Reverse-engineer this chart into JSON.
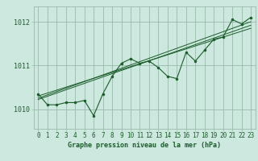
{
  "title": "",
  "xlabel": "Graphe pression niveau de la mer (hPa)",
  "bg_color": "#cce8df",
  "grid_color": "#99bbaa",
  "line_color": "#1a5c28",
  "xlim_min": -0.5,
  "xlim_max": 23.5,
  "ylim_min": 1009.55,
  "ylim_max": 1012.35,
  "yticks": [
    1010,
    1011,
    1012
  ],
  "xticks": [
    0,
    1,
    2,
    3,
    4,
    5,
    6,
    7,
    8,
    9,
    10,
    11,
    12,
    13,
    14,
    15,
    16,
    17,
    18,
    19,
    20,
    21,
    22,
    23
  ],
  "main_x": [
    0,
    1,
    2,
    3,
    4,
    5,
    6,
    7,
    8,
    9,
    10,
    11,
    12,
    13,
    14,
    15,
    16,
    17,
    18,
    19,
    20,
    21,
    22,
    23
  ],
  "main_y": [
    1010.35,
    1010.1,
    1010.1,
    1010.15,
    1010.15,
    1010.2,
    1009.85,
    1010.35,
    1010.75,
    1011.05,
    1011.15,
    1011.05,
    1011.1,
    1010.95,
    1010.75,
    1010.7,
    1011.3,
    1011.1,
    1011.35,
    1011.6,
    1011.65,
    1012.05,
    1011.95,
    1012.1
  ],
  "trend_lines": [
    {
      "x0": 0,
      "y0": 1010.25,
      "x1": 23,
      "y1": 1012.0
    },
    {
      "x0": 0,
      "y0": 1010.3,
      "x1": 23,
      "y1": 1011.85
    },
    {
      "x0": 0,
      "y0": 1010.22,
      "x1": 23,
      "y1": 1011.92
    }
  ],
  "tick_fontsize": 5.5,
  "xlabel_fontsize": 6.0
}
